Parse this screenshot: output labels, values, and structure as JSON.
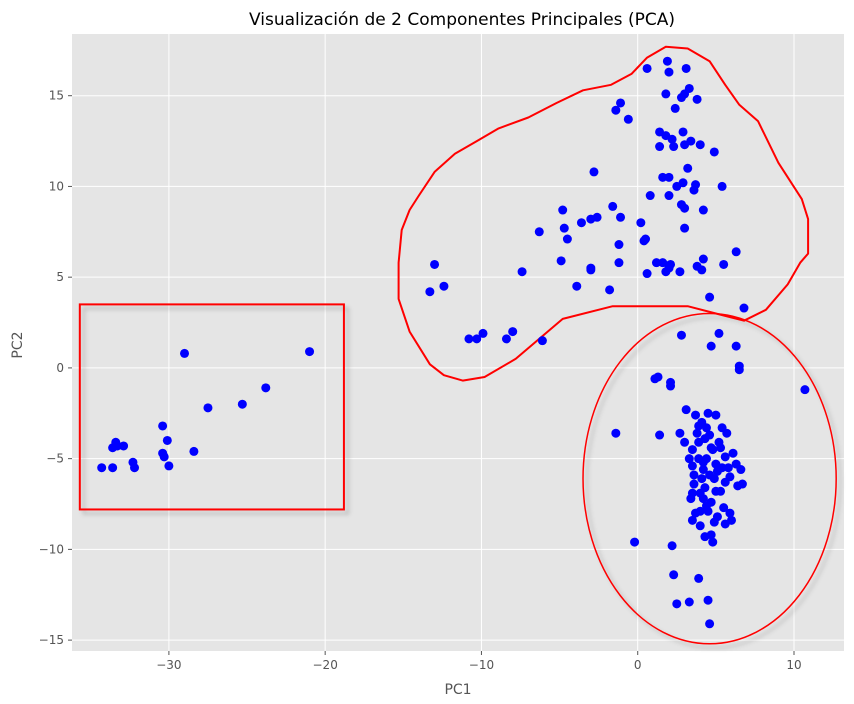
{
  "chart_data": {
    "type": "scatter",
    "title": "Visualización de 2 Componentes Principales (PCA)",
    "xlabel": "PC1",
    "ylabel": "PC2",
    "xlim": [
      -36.2,
      13.2
    ],
    "ylim": [
      -15.6,
      18.4
    ],
    "xticks": [
      -30,
      -20,
      -10,
      0,
      10
    ],
    "yticks": [
      -15,
      -10,
      -5,
      0,
      5,
      10,
      15
    ],
    "grid": true,
    "point_color": "#0000ff",
    "annotation_color": "#ff0000",
    "background_color": "#e5e5e5",
    "points": [
      [
        -34.3,
        -5.5
      ],
      [
        -33.6,
        -5.5
      ],
      [
        -33.6,
        -4.4
      ],
      [
        -33.4,
        -4.1
      ],
      [
        -33.3,
        -4.3
      ],
      [
        -32.9,
        -4.3
      ],
      [
        -32.3,
        -5.2
      ],
      [
        -32.2,
        -5.5
      ],
      [
        -30.4,
        -3.2
      ],
      [
        -30.4,
        -4.7
      ],
      [
        -30.3,
        -4.9
      ],
      [
        -30.1,
        -4.0
      ],
      [
        -30.0,
        -5.4
      ],
      [
        -29.0,
        0.8
      ],
      [
        -28.4,
        -4.6
      ],
      [
        -27.5,
        -2.2
      ],
      [
        -25.3,
        -2.0
      ],
      [
        -23.8,
        -1.1
      ],
      [
        -21.0,
        0.9
      ],
      [
        -13.3,
        4.2
      ],
      [
        -13.0,
        5.7
      ],
      [
        -12.4,
        4.5
      ],
      [
        -10.8,
        1.6
      ],
      [
        -10.3,
        1.6
      ],
      [
        -9.9,
        1.9
      ],
      [
        -8.4,
        1.6
      ],
      [
        -8.0,
        2.0
      ],
      [
        -7.4,
        5.3
      ],
      [
        -6.3,
        7.5
      ],
      [
        -6.1,
        1.5
      ],
      [
        -4.9,
        5.9
      ],
      [
        -4.8,
        8.7
      ],
      [
        -4.7,
        7.7
      ],
      [
        -4.5,
        7.1
      ],
      [
        -3.9,
        4.5
      ],
      [
        -3.6,
        8.0
      ],
      [
        -3.0,
        5.4
      ],
      [
        -3.0,
        5.5
      ],
      [
        -3.0,
        8.2
      ],
      [
        -2.8,
        10.8
      ],
      [
        -2.6,
        8.3
      ],
      [
        -1.8,
        4.3
      ],
      [
        -1.6,
        8.9
      ],
      [
        -1.4,
        14.2
      ],
      [
        -1.2,
        6.8
      ],
      [
        -1.2,
        5.8
      ],
      [
        -1.1,
        8.3
      ],
      [
        -1.1,
        14.6
      ],
      [
        -0.6,
        13.7
      ],
      [
        0.2,
        8.0
      ],
      [
        0.4,
        7.0
      ],
      [
        0.5,
        7.1
      ],
      [
        0.6,
        5.2
      ],
      [
        0.6,
        16.5
      ],
      [
        0.8,
        9.5
      ],
      [
        1.2,
        5.8
      ],
      [
        1.4,
        13.0
      ],
      [
        1.4,
        12.2
      ],
      [
        1.6,
        5.8
      ],
      [
        1.6,
        10.5
      ],
      [
        1.8,
        15.1
      ],
      [
        1.8,
        12.8
      ],
      [
        1.8,
        5.3
      ],
      [
        1.9,
        16.9
      ],
      [
        2.0,
        16.3
      ],
      [
        2.0,
        10.5
      ],
      [
        2.0,
        9.5
      ],
      [
        2.0,
        5.5
      ],
      [
        2.1,
        5.7
      ],
      [
        2.2,
        12.6
      ],
      [
        2.3,
        12.2
      ],
      [
        2.4,
        14.3
      ],
      [
        2.5,
        10.0
      ],
      [
        2.7,
        5.3
      ],
      [
        2.8,
        14.9
      ],
      [
        2.8,
        9.0
      ],
      [
        2.9,
        10.2
      ],
      [
        2.9,
        13.0
      ],
      [
        3.0,
        12.3
      ],
      [
        3.0,
        8.8
      ],
      [
        3.0,
        15.1
      ],
      [
        3.0,
        7.7
      ],
      [
        3.1,
        16.5
      ],
      [
        3.2,
        11.0
      ],
      [
        3.3,
        15.4
      ],
      [
        3.4,
        12.5
      ],
      [
        3.6,
        9.8
      ],
      [
        3.7,
        10.1
      ],
      [
        3.8,
        5.6
      ],
      [
        3.8,
        14.8
      ],
      [
        4.0,
        12.3
      ],
      [
        4.1,
        5.4
      ],
      [
        4.2,
        8.7
      ],
      [
        4.2,
        6.0
      ],
      [
        4.6,
        3.9
      ],
      [
        4.9,
        11.9
      ],
      [
        5.4,
        10.0
      ],
      [
        5.5,
        5.7
      ],
      [
        6.3,
        6.4
      ],
      [
        6.8,
        3.3
      ],
      [
        10.7,
        -1.2
      ],
      [
        2.8,
        1.8
      ],
      [
        5.2,
        1.9
      ],
      [
        6.3,
        1.2
      ],
      [
        6.5,
        0.1
      ],
      [
        6.5,
        -0.1
      ],
      [
        4.7,
        1.2
      ],
      [
        1.1,
        -0.6
      ],
      [
        1.3,
        -0.5
      ],
      [
        2.1,
        -0.8
      ],
      [
        -1.4,
        -3.6
      ],
      [
        -0.2,
        -9.6
      ],
      [
        1.4,
        -3.7
      ],
      [
        2.1,
        -1.0
      ],
      [
        2.2,
        -9.8
      ],
      [
        2.3,
        -11.4
      ],
      [
        2.5,
        -13.0
      ],
      [
        2.7,
        -3.6
      ],
      [
        3.0,
        -4.1
      ],
      [
        3.1,
        -2.3
      ],
      [
        3.3,
        -12.9
      ],
      [
        3.5,
        -4.5
      ],
      [
        3.5,
        -5.4
      ],
      [
        3.6,
        -6.4
      ],
      [
        3.7,
        -2.6
      ],
      [
        3.8,
        -3.6
      ],
      [
        3.9,
        -11.6
      ],
      [
        3.9,
        -4.1
      ],
      [
        4.0,
        -8.7
      ],
      [
        4.1,
        -3.0
      ],
      [
        4.2,
        -5.6
      ],
      [
        4.3,
        -6.6
      ],
      [
        4.4,
        -3.3
      ],
      [
        4.4,
        -5.0
      ],
      [
        4.5,
        -12.8
      ],
      [
        4.6,
        -3.7
      ],
      [
        4.6,
        -5.9
      ],
      [
        4.7,
        -9.2
      ],
      [
        4.7,
        -7.4
      ],
      [
        4.8,
        -4.5
      ],
      [
        4.9,
        -6.1
      ],
      [
        5.0,
        -2.6
      ],
      [
        5.0,
        -5.3
      ],
      [
        5.2,
        -4.1
      ],
      [
        5.3,
        -6.8
      ],
      [
        5.4,
        -3.3
      ],
      [
        5.5,
        -7.7
      ],
      [
        5.6,
        -4.9
      ],
      [
        5.8,
        -5.5
      ],
      [
        5.9,
        -6.0
      ],
      [
        6.0,
        -8.4
      ],
      [
        6.1,
        -4.7
      ],
      [
        6.3,
        -5.3
      ],
      [
        6.4,
        -6.5
      ],
      [
        6.6,
        -5.6
      ],
      [
        6.7,
        -6.4
      ],
      [
        5.1,
        -8.2
      ],
      [
        4.3,
        -9.3
      ],
      [
        4.8,
        -9.6
      ],
      [
        4.6,
        -14.1
      ],
      [
        3.5,
        -8.4
      ],
      [
        4.0,
        -7.9
      ],
      [
        5.6,
        -8.6
      ],
      [
        3.4,
        -7.2
      ],
      [
        4.2,
        -5.2
      ],
      [
        5.7,
        -3.6
      ],
      [
        3.6,
        -5.9
      ],
      [
        4.0,
        -6.9
      ],
      [
        5.3,
        -4.4
      ],
      [
        3.7,
        -8.0
      ],
      [
        4.4,
        -7.6
      ],
      [
        3.9,
        -3.2
      ],
      [
        4.2,
        -7.2
      ],
      [
        5.0,
        -6.8
      ],
      [
        3.3,
        -5.0
      ],
      [
        4.5,
        -2.5
      ],
      [
        4.9,
        -8.5
      ],
      [
        5.4,
        -5.5
      ],
      [
        4.7,
        -4.4
      ],
      [
        4.1,
        -6.1
      ],
      [
        5.9,
        -8.0
      ],
      [
        3.5,
        -6.9
      ],
      [
        4.3,
        -3.9
      ],
      [
        5.1,
        -5.7
      ],
      [
        4.5,
        -7.9
      ],
      [
        3.9,
        -5.0
      ],
      [
        5.6,
        -6.3
      ]
    ],
    "annotations": [
      {
        "shape": "rectangle",
        "x0": -35.7,
        "x1": -18.8,
        "y0": -7.8,
        "y1": 3.5
      },
      {
        "shape": "ellipse",
        "cx": 4.6,
        "cy": -6.1,
        "rx": 8.1,
        "ry": 9.1
      },
      {
        "shape": "freeform",
        "points": [
          [
            -15.3,
            5.8
          ],
          [
            -15.1,
            7.6
          ],
          [
            -14.6,
            8.7
          ],
          [
            -14.0,
            9.5
          ],
          [
            -13.0,
            10.8
          ],
          [
            -11.7,
            11.8
          ],
          [
            -10.3,
            12.5
          ],
          [
            -8.9,
            13.2
          ],
          [
            -7.0,
            13.8
          ],
          [
            -5.2,
            14.6
          ],
          [
            -3.5,
            15.3
          ],
          [
            -1.7,
            15.6
          ],
          [
            -0.4,
            16.2
          ],
          [
            0.6,
            17.1
          ],
          [
            1.8,
            17.7
          ],
          [
            3.2,
            17.6
          ],
          [
            4.6,
            16.9
          ],
          [
            5.6,
            15.6
          ],
          [
            6.5,
            14.5
          ],
          [
            7.7,
            13.6
          ],
          [
            9.0,
            11.3
          ],
          [
            10.5,
            9.3
          ],
          [
            10.9,
            8.2
          ],
          [
            10.9,
            6.3
          ],
          [
            10.4,
            5.8
          ],
          [
            9.6,
            4.6
          ],
          [
            8.2,
            3.2
          ],
          [
            6.8,
            2.6
          ],
          [
            5.0,
            3.0
          ],
          [
            3.2,
            3.4
          ],
          [
            1.5,
            3.4
          ],
          [
            -1.6,
            3.4
          ],
          [
            -4.8,
            2.7
          ],
          [
            -7.8,
            0.5
          ],
          [
            -9.8,
            -0.5
          ],
          [
            -11.2,
            -0.7
          ],
          [
            -12.4,
            -0.4
          ],
          [
            -13.3,
            0.2
          ],
          [
            -14.6,
            2.0
          ],
          [
            -15.3,
            3.8
          ],
          [
            -15.3,
            5.8
          ]
        ]
      }
    ]
  }
}
